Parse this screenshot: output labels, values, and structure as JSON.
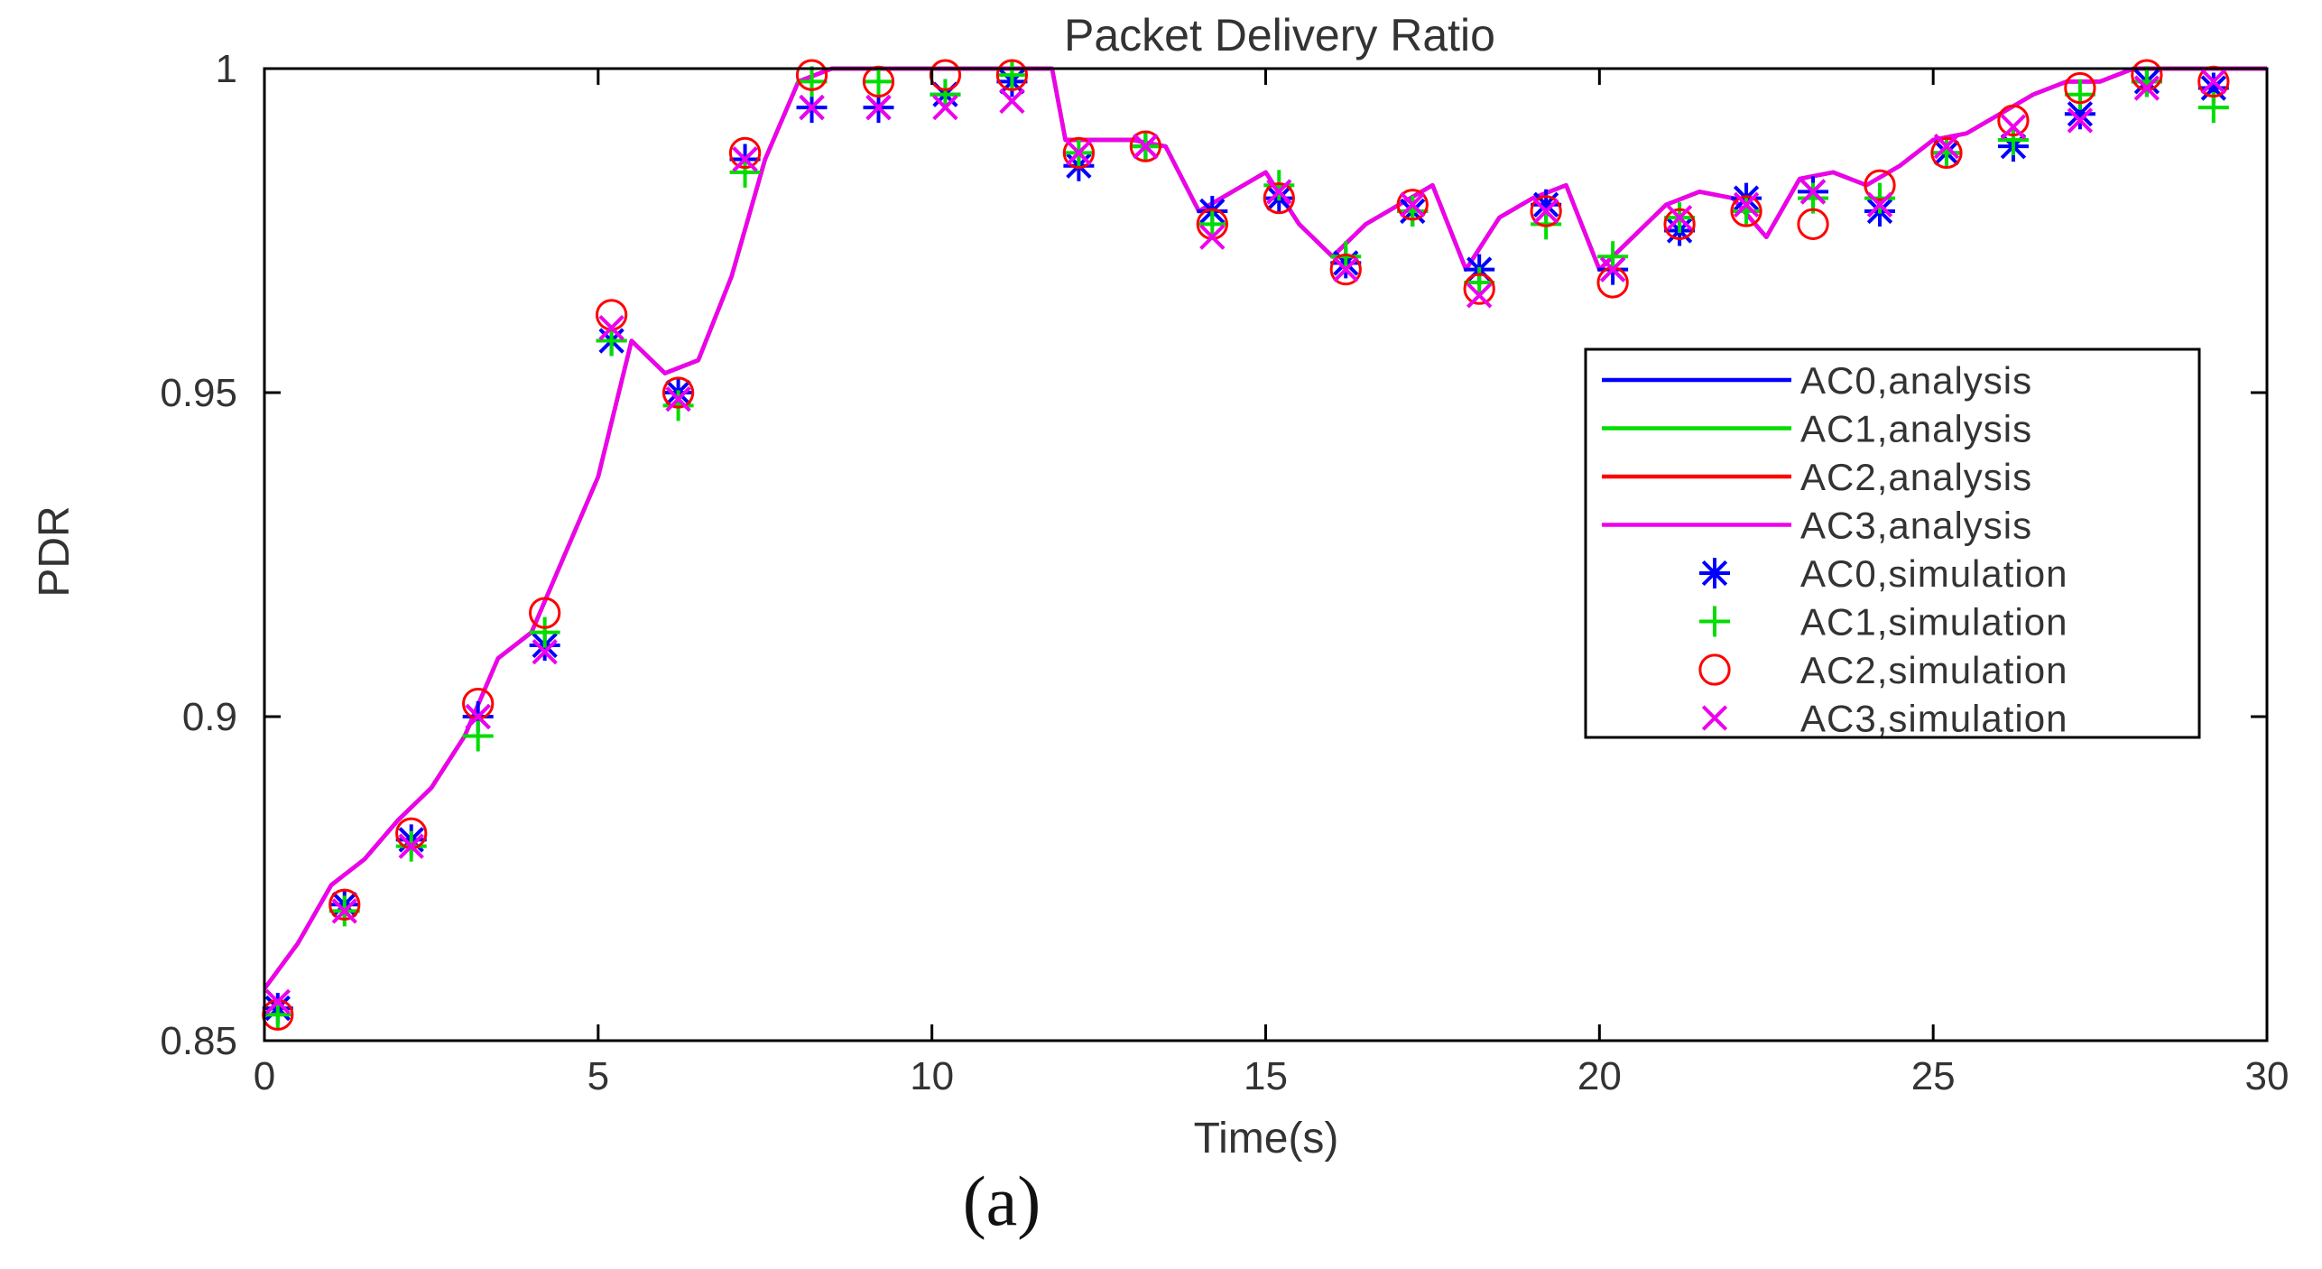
{
  "figure": {
    "caption": "(a)"
  },
  "chart_data": {
    "type": "line",
    "title": "Packet Delivery Ratio",
    "xlabel": "Time(s)",
    "ylabel": "PDR",
    "xlim": [
      0,
      30
    ],
    "ylim": [
      0.85,
      1
    ],
    "x_ticks": [
      0,
      5,
      10,
      15,
      20,
      25,
      30
    ],
    "x_tick_labels": [
      "0",
      "5",
      "10",
      "15",
      "20",
      "25",
      "30"
    ],
    "y_ticks": [
      0.85,
      0.9,
      0.95,
      1
    ],
    "y_tick_labels": [
      "0.85",
      "0.9",
      "0.95",
      "1"
    ],
    "grid": false,
    "legend_position": "right",
    "series": [
      {
        "name": "AC0,analysis",
        "kind": "line",
        "color": "#0000ff",
        "x": [
          0.0,
          0.5,
          1.0,
          1.5,
          2.0,
          2.5,
          3.0,
          3.5,
          4.0,
          4.5,
          5.0,
          5.5,
          6.0,
          6.5,
          7.0,
          7.5,
          8.0,
          8.5,
          9.0,
          9.5,
          10.0,
          10.5,
          11.0,
          11.5,
          11.8,
          12.0,
          12.5,
          13.0,
          13.5,
          14.0,
          14.5,
          15.0,
          15.5,
          16.0,
          16.5,
          17.0,
          17.5,
          18.0,
          18.5,
          19.0,
          19.5,
          20.0,
          20.5,
          21.0,
          21.5,
          22.0,
          22.5,
          23.0,
          23.5,
          24.0,
          24.5,
          25.0,
          25.5,
          26.0,
          26.5,
          27.0,
          27.5,
          28.0,
          28.5,
          29.0,
          29.5,
          30.0
        ],
        "y": [
          0.858,
          0.865,
          0.874,
          0.878,
          0.884,
          0.889,
          0.897,
          0.909,
          0.913,
          0.925,
          0.937,
          0.958,
          0.953,
          0.955,
          0.968,
          0.986,
          0.998,
          1.0,
          1.0,
          1.0,
          1.0,
          1.0,
          1.0,
          1.0,
          1.0,
          0.989,
          0.989,
          0.989,
          0.988,
          0.978,
          0.981,
          0.984,
          0.976,
          0.971,
          0.976,
          0.979,
          0.982,
          0.969,
          0.977,
          0.98,
          0.982,
          0.969,
          0.974,
          0.979,
          0.981,
          0.98,
          0.974,
          0.983,
          0.984,
          0.982,
          0.985,
          0.989,
          0.99,
          0.993,
          0.996,
          0.998,
          0.998,
          1.0,
          1.0,
          1.0,
          1.0,
          1.0
        ]
      },
      {
        "name": "AC1,analysis",
        "kind": "line",
        "color": "#00dd00",
        "x": [
          0.0,
          0.5,
          1.0,
          1.5,
          2.0,
          2.5,
          3.0,
          3.5,
          4.0,
          4.5,
          5.0,
          5.5,
          6.0,
          6.5,
          7.0,
          7.5,
          8.0,
          8.5,
          9.0,
          9.5,
          10.0,
          10.5,
          11.0,
          11.5,
          11.8,
          12.0,
          12.5,
          13.0,
          13.5,
          14.0,
          14.5,
          15.0,
          15.5,
          16.0,
          16.5,
          17.0,
          17.5,
          18.0,
          18.5,
          19.0,
          19.5,
          20.0,
          20.5,
          21.0,
          21.5,
          22.0,
          22.5,
          23.0,
          23.5,
          24.0,
          24.5,
          25.0,
          25.5,
          26.0,
          26.5,
          27.0,
          27.5,
          28.0,
          28.5,
          29.0,
          29.5,
          30.0
        ],
        "y": [
          0.858,
          0.865,
          0.874,
          0.878,
          0.884,
          0.889,
          0.897,
          0.909,
          0.913,
          0.925,
          0.937,
          0.958,
          0.953,
          0.955,
          0.968,
          0.986,
          0.998,
          1.0,
          1.0,
          1.0,
          1.0,
          1.0,
          1.0,
          1.0,
          1.0,
          0.989,
          0.989,
          0.989,
          0.988,
          0.978,
          0.981,
          0.984,
          0.976,
          0.971,
          0.976,
          0.979,
          0.982,
          0.969,
          0.977,
          0.98,
          0.982,
          0.969,
          0.974,
          0.979,
          0.981,
          0.98,
          0.974,
          0.983,
          0.984,
          0.982,
          0.985,
          0.989,
          0.99,
          0.993,
          0.996,
          0.998,
          0.998,
          1.0,
          1.0,
          1.0,
          1.0,
          1.0
        ]
      },
      {
        "name": "AC2,analysis",
        "kind": "line",
        "color": "#ff0000",
        "x": [
          0.0,
          0.5,
          1.0,
          1.5,
          2.0,
          2.5,
          3.0,
          3.5,
          4.0,
          4.5,
          5.0,
          5.5,
          6.0,
          6.5,
          7.0,
          7.5,
          8.0,
          8.5,
          9.0,
          9.5,
          10.0,
          10.5,
          11.0,
          11.5,
          11.8,
          12.0,
          12.5,
          13.0,
          13.5,
          14.0,
          14.5,
          15.0,
          15.5,
          16.0,
          16.5,
          17.0,
          17.5,
          18.0,
          18.5,
          19.0,
          19.5,
          20.0,
          20.5,
          21.0,
          21.5,
          22.0,
          22.5,
          23.0,
          23.5,
          24.0,
          24.5,
          25.0,
          25.5,
          26.0,
          26.5,
          27.0,
          27.5,
          28.0,
          28.5,
          29.0,
          29.5,
          30.0
        ],
        "y": [
          0.858,
          0.865,
          0.874,
          0.878,
          0.884,
          0.889,
          0.897,
          0.909,
          0.913,
          0.925,
          0.937,
          0.958,
          0.953,
          0.955,
          0.968,
          0.986,
          0.998,
          1.0,
          1.0,
          1.0,
          1.0,
          1.0,
          1.0,
          1.0,
          1.0,
          0.989,
          0.989,
          0.989,
          0.988,
          0.978,
          0.981,
          0.984,
          0.976,
          0.971,
          0.976,
          0.979,
          0.982,
          0.969,
          0.977,
          0.98,
          0.982,
          0.969,
          0.974,
          0.979,
          0.981,
          0.98,
          0.974,
          0.983,
          0.984,
          0.982,
          0.985,
          0.989,
          0.99,
          0.993,
          0.996,
          0.998,
          0.998,
          1.0,
          1.0,
          1.0,
          1.0,
          1.0
        ]
      },
      {
        "name": "AC3,analysis",
        "kind": "line",
        "color": "#ee00ee",
        "x": [
          0.0,
          0.5,
          1.0,
          1.5,
          2.0,
          2.5,
          3.0,
          3.5,
          4.0,
          4.5,
          5.0,
          5.5,
          6.0,
          6.5,
          7.0,
          7.5,
          8.0,
          8.5,
          9.0,
          9.5,
          10.0,
          10.5,
          11.0,
          11.5,
          11.8,
          12.0,
          12.5,
          13.0,
          13.5,
          14.0,
          14.5,
          15.0,
          15.5,
          16.0,
          16.5,
          17.0,
          17.5,
          18.0,
          18.5,
          19.0,
          19.5,
          20.0,
          20.5,
          21.0,
          21.5,
          22.0,
          22.5,
          23.0,
          23.5,
          24.0,
          24.5,
          25.0,
          25.5,
          26.0,
          26.5,
          27.0,
          27.5,
          28.0,
          28.5,
          29.0,
          29.5,
          30.0
        ],
        "y": [
          0.858,
          0.865,
          0.874,
          0.878,
          0.884,
          0.889,
          0.897,
          0.909,
          0.913,
          0.925,
          0.937,
          0.958,
          0.953,
          0.955,
          0.968,
          0.986,
          0.998,
          1.0,
          1.0,
          1.0,
          1.0,
          1.0,
          1.0,
          1.0,
          1.0,
          0.989,
          0.989,
          0.989,
          0.988,
          0.978,
          0.981,
          0.984,
          0.976,
          0.971,
          0.976,
          0.979,
          0.982,
          0.969,
          0.977,
          0.98,
          0.982,
          0.969,
          0.974,
          0.979,
          0.981,
          0.98,
          0.974,
          0.983,
          0.984,
          0.982,
          0.985,
          0.989,
          0.99,
          0.993,
          0.996,
          0.998,
          0.998,
          1.0,
          1.0,
          1.0,
          1.0,
          1.0
        ]
      },
      {
        "name": "AC0,simulation",
        "kind": "scatter",
        "marker": "asterisk",
        "color": "#0000ff",
        "x": [
          0.2,
          1.2,
          2.2,
          3.2,
          4.2,
          5.2,
          6.2,
          7.2,
          8.2,
          9.2,
          10.2,
          11.2,
          12.2,
          13.2,
          14.2,
          15.2,
          16.2,
          17.2,
          18.2,
          19.2,
          20.2,
          21.2,
          22.2,
          23.2,
          24.2,
          25.2,
          26.2,
          27.2,
          28.2,
          29.2
        ],
        "y": [
          0.855,
          0.871,
          0.881,
          0.9,
          0.911,
          0.958,
          0.95,
          0.986,
          0.994,
          0.994,
          0.996,
          0.998,
          0.985,
          0.988,
          0.978,
          0.98,
          0.97,
          0.978,
          0.969,
          0.979,
          0.969,
          0.975,
          0.98,
          0.981,
          0.978,
          0.987,
          0.988,
          0.993,
          0.998,
          0.997
        ]
      },
      {
        "name": "AC1,simulation",
        "kind": "scatter",
        "marker": "plus",
        "color": "#00dd00",
        "x": [
          0.2,
          1.2,
          2.2,
          3.2,
          4.2,
          5.2,
          6.2,
          7.2,
          8.2,
          9.2,
          10.2,
          11.2,
          12.2,
          13.2,
          14.2,
          15.2,
          16.2,
          17.2,
          18.2,
          19.2,
          20.2,
          21.2,
          22.2,
          23.2,
          24.2,
          25.2,
          26.2,
          27.2,
          28.2,
          29.2
        ],
        "y": [
          0.854,
          0.87,
          0.88,
          0.897,
          0.913,
          0.958,
          0.948,
          0.984,
          0.998,
          0.998,
          0.996,
          0.999,
          0.987,
          0.988,
          0.976,
          0.982,
          0.971,
          0.978,
          0.967,
          0.976,
          0.971,
          0.977,
          0.978,
          0.98,
          0.98,
          0.987,
          0.989,
          0.996,
          0.998,
          0.994
        ]
      },
      {
        "name": "AC2,simulation",
        "kind": "scatter",
        "marker": "circle",
        "color": "#ff0000",
        "x": [
          0.2,
          1.2,
          2.2,
          3.2,
          4.2,
          5.2,
          6.2,
          7.2,
          8.2,
          9.2,
          10.2,
          11.2,
          12.2,
          13.2,
          14.2,
          15.2,
          16.2,
          17.2,
          18.2,
          19.2,
          20.2,
          21.2,
          22.2,
          23.2,
          24.2,
          25.2,
          26.2,
          27.2,
          28.2,
          29.2
        ],
        "y": [
          0.854,
          0.871,
          0.882,
          0.902,
          0.916,
          0.962,
          0.95,
          0.987,
          0.999,
          0.998,
          0.999,
          0.999,
          0.987,
          0.988,
          0.976,
          0.98,
          0.969,
          0.979,
          0.966,
          0.978,
          0.967,
          0.976,
          0.978,
          0.976,
          0.982,
          0.987,
          0.992,
          0.997,
          0.999,
          0.998
        ]
      },
      {
        "name": "AC3,simulation",
        "kind": "scatter",
        "marker": "x",
        "color": "#ee00ee",
        "x": [
          0.2,
          1.2,
          2.2,
          3.2,
          4.2,
          5.2,
          6.2,
          7.2,
          8.2,
          9.2,
          10.2,
          11.2,
          12.2,
          13.2,
          14.2,
          15.2,
          16.2,
          17.2,
          18.2,
          19.2,
          20.2,
          21.2,
          22.2,
          23.2,
          24.2,
          25.2,
          26.2,
          27.2,
          28.2,
          29.2
        ],
        "y": [
          0.856,
          0.87,
          0.88,
          0.9,
          0.91,
          0.96,
          0.949,
          0.986,
          0.994,
          0.994,
          0.994,
          0.995,
          0.987,
          0.988,
          0.974,
          0.981,
          0.969,
          0.979,
          0.965,
          0.978,
          0.969,
          0.977,
          0.979,
          0.981,
          0.979,
          0.988,
          0.991,
          0.992,
          0.997,
          0.998
        ]
      }
    ]
  }
}
